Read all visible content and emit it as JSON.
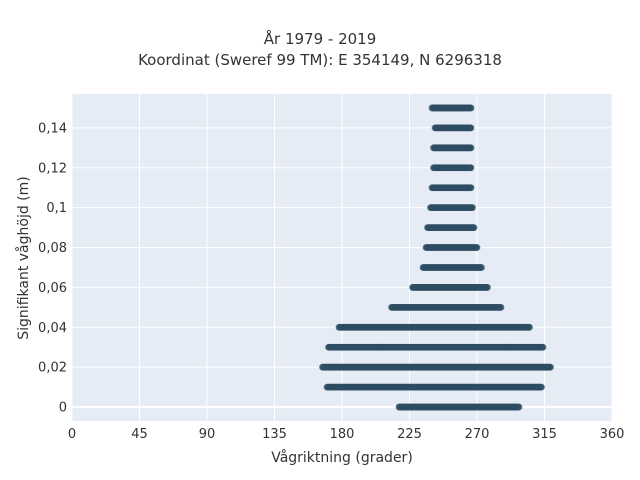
{
  "chart_data": {
    "type": "scatter",
    "title": "År 1979 - 2019",
    "subtitle": "Koordinat (Sweref 99 TM): E 354149, N 6296318",
    "xlabel": "Vågriktning (grader)",
    "ylabel": "Signifikant våghöjd (m)",
    "xlim": [
      0,
      360
    ],
    "ylim": [
      -0.007,
      0.157
    ],
    "x_ticks": [
      0,
      45,
      90,
      135,
      180,
      225,
      270,
      315,
      360
    ],
    "x_tick_labels": [
      "0",
      "45",
      "90",
      "135",
      "180",
      "225",
      "270",
      "315",
      "360"
    ],
    "y_ticks": [
      0,
      0.02,
      0.04,
      0.06,
      0.08,
      0.1,
      0.12,
      0.14
    ],
    "y_tick_labels": [
      "0",
      "0,02",
      "0,04",
      "0,06",
      "0,08",
      "0,1",
      "0,12",
      "0,14"
    ],
    "grid": true,
    "marker_color": "#2e4d63",
    "rows": [
      {
        "y": 0.0,
        "x_min": 218,
        "x_max": 298
      },
      {
        "y": 0.01,
        "x_min": 170,
        "x_max": 313
      },
      {
        "y": 0.02,
        "x_min": 167,
        "x_max": 319
      },
      {
        "y": 0.03,
        "x_min": 171,
        "x_max": 314
      },
      {
        "y": 0.04,
        "x_min": 178,
        "x_max": 305
      },
      {
        "y": 0.05,
        "x_min": 213,
        "x_max": 286
      },
      {
        "y": 0.06,
        "x_min": 227,
        "x_max": 277
      },
      {
        "y": 0.07,
        "x_min": 234,
        "x_max": 273
      },
      {
        "y": 0.08,
        "x_min": 236,
        "x_max": 270
      },
      {
        "y": 0.09,
        "x_min": 237,
        "x_max": 268
      },
      {
        "y": 0.1,
        "x_min": 239,
        "x_max": 267
      },
      {
        "y": 0.11,
        "x_min": 240,
        "x_max": 266
      },
      {
        "y": 0.12,
        "x_min": 241,
        "x_max": 266
      },
      {
        "y": 0.13,
        "x_min": 241,
        "x_max": 266
      },
      {
        "y": 0.14,
        "x_min": 242,
        "x_max": 266
      },
      {
        "y": 0.15,
        "x_min": 240,
        "x_max": 266
      }
    ]
  }
}
